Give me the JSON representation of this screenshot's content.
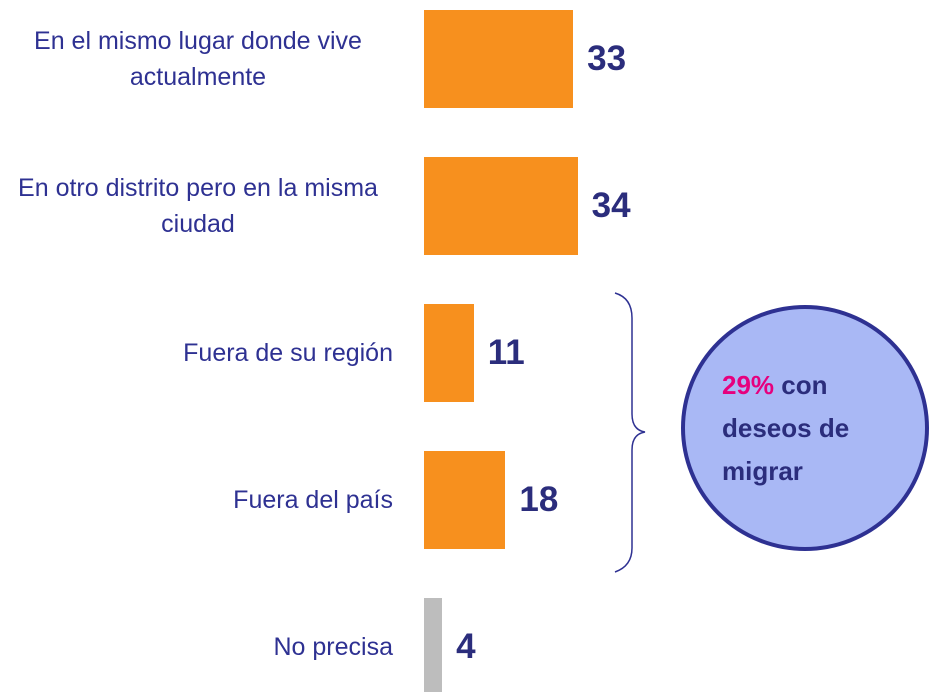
{
  "chart_data": {
    "type": "bar",
    "orientation": "horizontal",
    "categories": [
      "En el mismo lugar donde vive actualmente",
      "En otro distrito pero en la misma ciudad",
      "Fuera de su región",
      "Fuera del país",
      "No precisa"
    ],
    "values": [
      33,
      34,
      11,
      18,
      4
    ],
    "colors": [
      "#f7901e",
      "#f7901e",
      "#f7901e",
      "#f7901e",
      "#bdbdbd"
    ],
    "annotation": {
      "highlight": "29%",
      "lines": [
        "con",
        "deseos de",
        "migrar"
      ]
    }
  }
}
